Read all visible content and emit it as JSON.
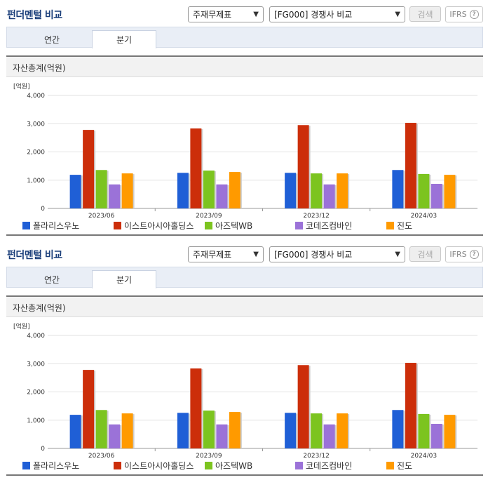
{
  "widget": {
    "title": "펀더멘털 비교",
    "select_type": "주재무제표",
    "select_group": "[FG000] 경쟁사 비교",
    "search_label": "검색",
    "ifrs_label": "IFRS",
    "help_glyph": "?",
    "tabs": [
      "연간",
      "분기"
    ],
    "active_tab": "분기",
    "section_title": "자산총계(억원)"
  },
  "chart_data": {
    "type": "bar",
    "title": "자산총계(억원)",
    "unit_label": "[억원]",
    "categories": [
      "2023/06",
      "2023/09",
      "2023/12",
      "2024/03"
    ],
    "ylim": [
      0,
      4000
    ],
    "yticks": [
      "0",
      "1,000",
      "2,000",
      "3,000",
      "4,000"
    ],
    "ytick_values": [
      0,
      1000,
      2000,
      3000,
      4000
    ],
    "grid": true,
    "legend_position": "bottom",
    "series": [
      {
        "name": "폴라리스우노",
        "color": "#1f5fd6",
        "values": [
          1190,
          1260,
          1260,
          1360
        ]
      },
      {
        "name": "이스트아시아홀딩스",
        "color": "#cc2e0a",
        "values": [
          2780,
          2830,
          2950,
          3030
        ]
      },
      {
        "name": "아즈텍WB",
        "color": "#7cc41f",
        "values": [
          1360,
          1340,
          1240,
          1220
        ]
      },
      {
        "name": "코데즈컴바인",
        "color": "#9b72d8",
        "values": [
          850,
          850,
          850,
          870
        ]
      },
      {
        "name": "진도",
        "color": "#ff9a00",
        "values": [
          1240,
          1290,
          1240,
          1190
        ]
      }
    ]
  }
}
